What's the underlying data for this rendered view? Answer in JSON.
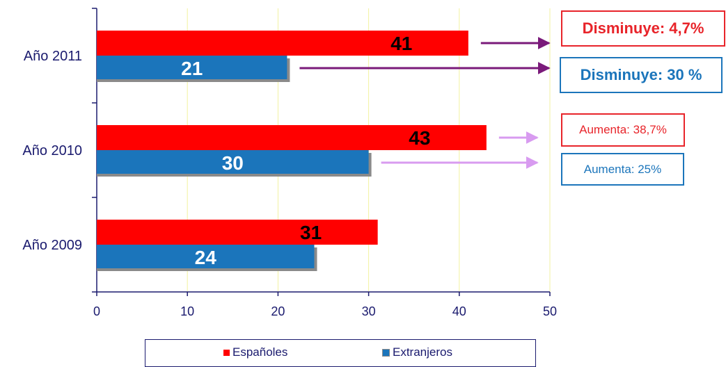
{
  "chart_data": {
    "type": "bar",
    "orientation": "horizontal",
    "categories": [
      "Año 2011",
      "Año 2010",
      "Año 2009"
    ],
    "series": [
      {
        "name": "Españoles",
        "values": [
          41,
          43,
          31
        ],
        "color": "#ff0000"
      },
      {
        "name": "Extranjeros",
        "values": [
          21,
          30,
          24
        ],
        "color": "#1b75bb"
      }
    ],
    "xlim": [
      0,
      50
    ],
    "xticks": [
      "0",
      "10",
      "20",
      "30",
      "40",
      "50"
    ],
    "grid": "vertical",
    "gridline_color": "#f2f2a0",
    "axis_color": "#1a1a6e",
    "legend_position": "bottom",
    "annotations": [
      {
        "category": "Año 2011",
        "series": "Españoles",
        "text": "Disminuye: 4,7%",
        "color": "#e8242a",
        "arrow_color": "#7a1a7a"
      },
      {
        "category": "Año 2011",
        "series": "Extranjeros",
        "text": "Disminuye: 30 %",
        "color": "#1b75bb",
        "arrow_color": "#7a1a7a"
      },
      {
        "category": "Año 2010",
        "series": "Españoles",
        "text": "Aumenta:  38,7%",
        "color": "#e8242a",
        "arrow_color": "#d89bf0"
      },
      {
        "category": "Año 2010",
        "series": "Extranjeros",
        "text": "Aumenta:  25%",
        "color": "#1b75bb",
        "arrow_color": "#d89bf0"
      }
    ]
  }
}
